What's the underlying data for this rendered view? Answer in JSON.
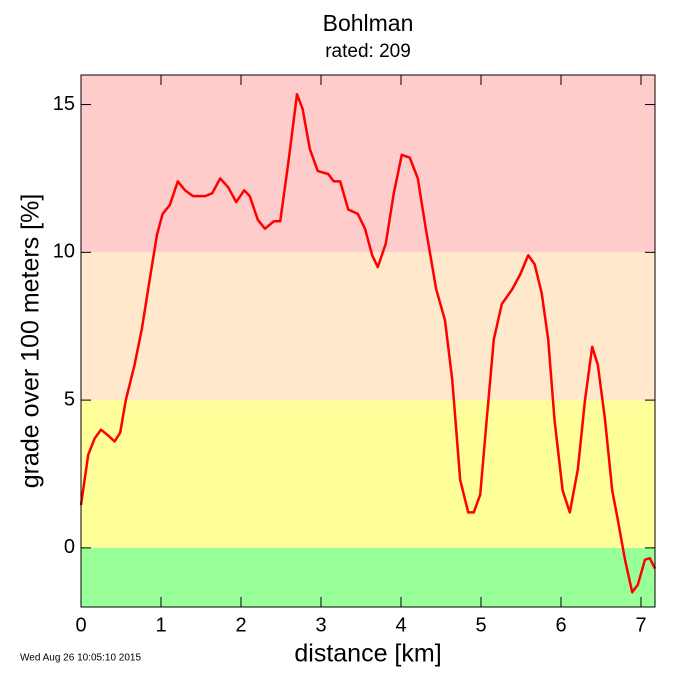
{
  "chart_data": {
    "type": "line",
    "title": "Bohlman",
    "subtitle": "rated: 209",
    "x_label": "distance [km]",
    "y_label": "grade over 100 meters [%]",
    "timestamp": "Wed Aug 26 10:05:10 2015",
    "xlim": [
      0,
      7.175
    ],
    "ylim": [
      -2,
      16
    ],
    "xticks": [
      0,
      1,
      2,
      3,
      4,
      5,
      6,
      7
    ],
    "yticks": [
      0,
      5,
      10,
      15
    ],
    "bands": [
      {
        "from": -2,
        "to": 0,
        "color": "#99ff99"
      },
      {
        "from": 0,
        "to": 5,
        "color": "#ffff99"
      },
      {
        "from": 5,
        "to": 10,
        "color": "#ffe8cc"
      },
      {
        "from": 10,
        "to": 16,
        "color": "#ffcccc"
      }
    ],
    "color": "#ff0000",
    "x": [
      0,
      0.09,
      0.17,
      0.25,
      0.34,
      0.42,
      0.49,
      0.56,
      0.67,
      0.76,
      0.86,
      0.95,
      1.02,
      1.11,
      1.21,
      1.3,
      1.4,
      1.55,
      1.64,
      1.74,
      1.84,
      1.94,
      2.04,
      2.11,
      2.21,
      2.3,
      2.41,
      2.49,
      2.59,
      2.7,
      2.77,
      2.86,
      2.96,
      3.09,
      3.16,
      3.24,
      3.34,
      3.46,
      3.55,
      3.64,
      3.71,
      3.81,
      3.91,
      4.01,
      4.11,
      4.21,
      4.31,
      4.44,
      4.55,
      4.64,
      4.74,
      4.84,
      4.91,
      4.99,
      5.07,
      5.16,
      5.26,
      5.39,
      5.49,
      5.59,
      5.67,
      5.76,
      5.84,
      5.92,
      6.02,
      6.11,
      6.21,
      6.3,
      6.39,
      6.46,
      6.55,
      6.64,
      6.71,
      6.8,
      6.89,
      6.96,
      7.05,
      7.11,
      7.175
    ],
    "values": [
      1.45,
      3.15,
      3.7,
      4.0,
      3.8,
      3.6,
      3.9,
      5.0,
      6.2,
      7.4,
      9.1,
      10.6,
      11.3,
      11.6,
      12.4,
      12.1,
      11.9,
      11.9,
      12.0,
      12.5,
      12.2,
      11.7,
      12.1,
      11.9,
      11.1,
      10.8,
      11.05,
      11.05,
      13.0,
      15.35,
      14.85,
      13.5,
      12.75,
      12.65,
      12.4,
      12.4,
      11.45,
      11.3,
      10.8,
      9.9,
      9.5,
      10.3,
      12.0,
      13.3,
      13.2,
      12.5,
      10.8,
      8.75,
      7.7,
      5.7,
      2.3,
      1.2,
      1.2,
      1.8,
      4.3,
      7.05,
      8.25,
      8.75,
      9.25,
      9.9,
      9.6,
      8.6,
      7.05,
      4.3,
      1.95,
      1.2,
      2.65,
      5.0,
      6.8,
      6.2,
      4.35,
      1.95,
      0.95,
      -0.4,
      -1.5,
      -1.25,
      -0.4,
      -0.35,
      -0.7
    ]
  }
}
